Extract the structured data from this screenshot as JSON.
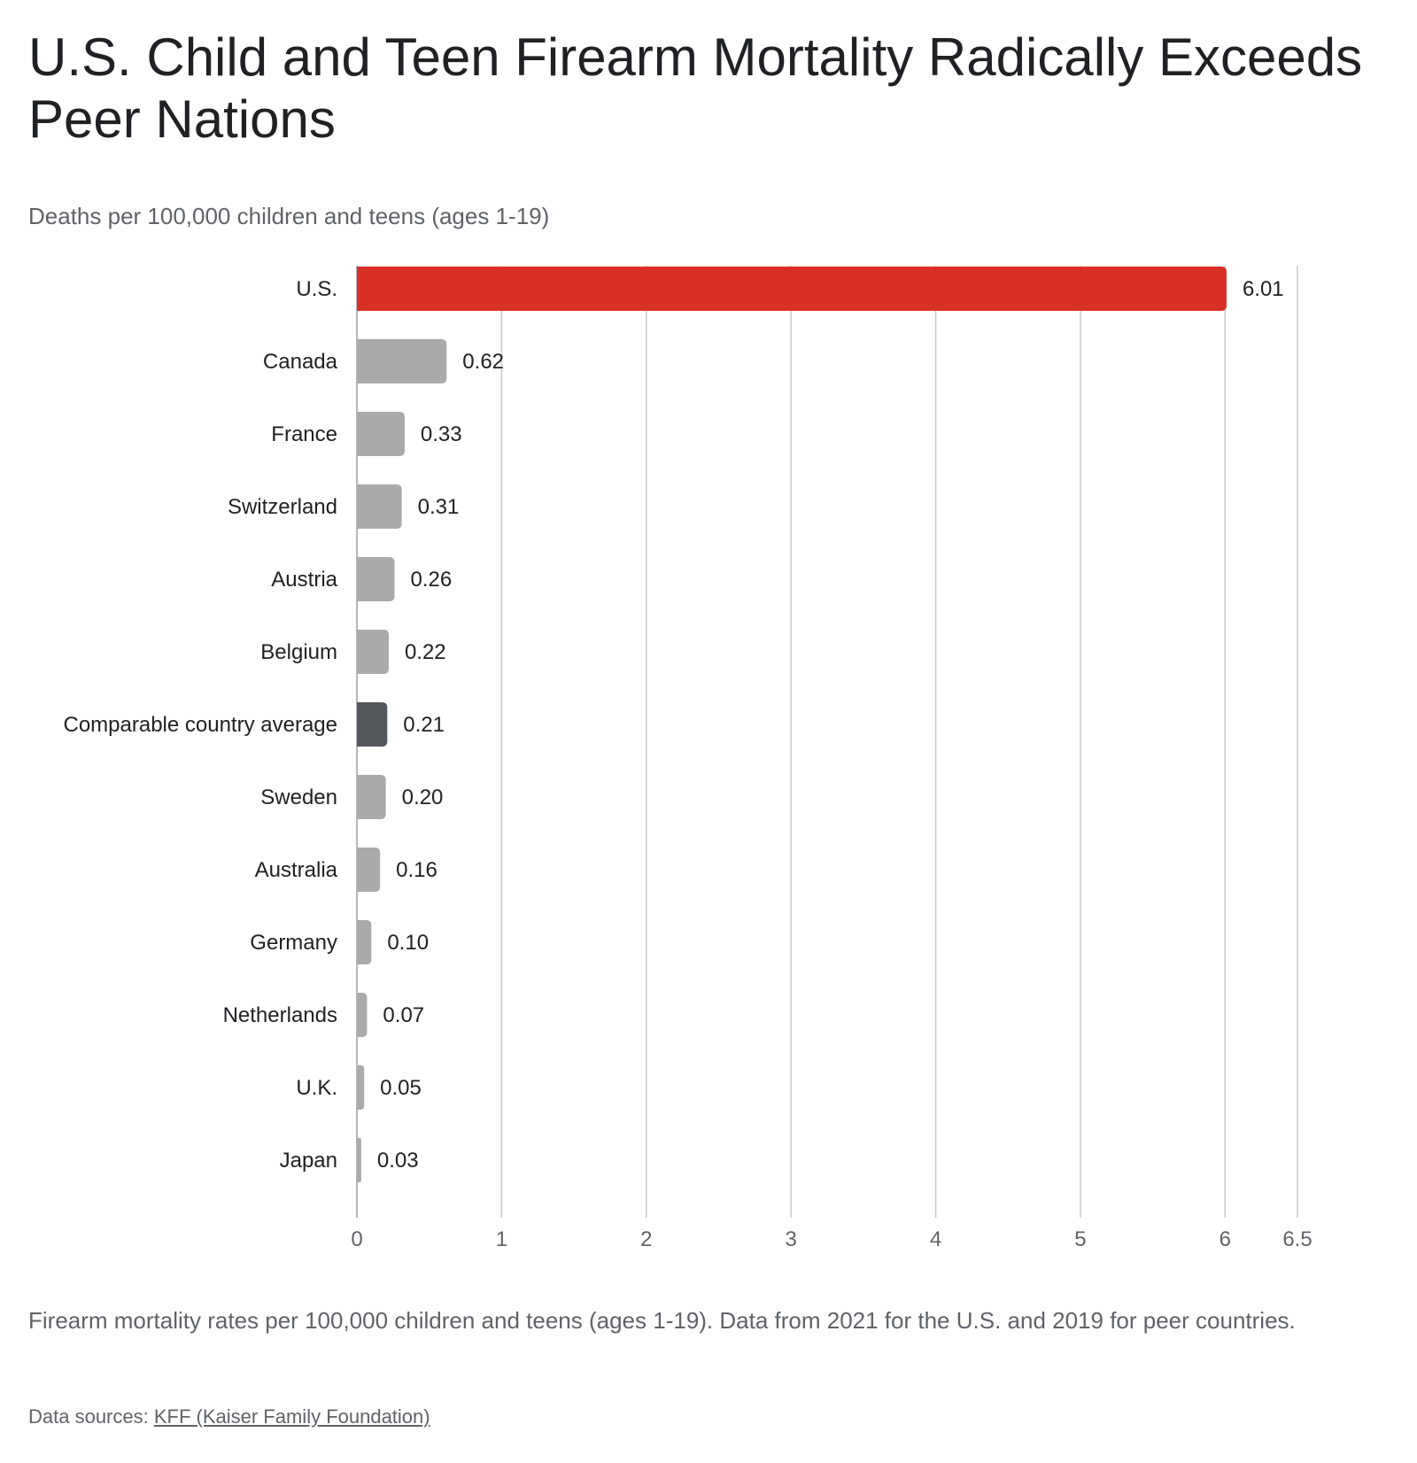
{
  "header": {
    "title": "U.S. Child and Teen Firearm Mortality Radically Exceeds Peer Nations",
    "subtitle": "Deaths per 100,000 children and teens (ages 1-19)"
  },
  "footer": {
    "note": "Firearm mortality rates per 100,000 children and teens (ages 1-19). Data from 2021 for the U.S. and 2019 for peer countries.",
    "sources_prefix": "Data sources: ",
    "sources_link": "KFF (Kaiser Family Foundation)"
  },
  "chart_data": {
    "type": "bar",
    "orientation": "horizontal",
    "title": "U.S. Child and Teen Firearm Mortality Radically Exceeds Peer Nations",
    "subtitle": "Deaths per 100,000 children and teens (ages 1-19)",
    "categories": [
      "U.S.",
      "Canada",
      "France",
      "Switzerland",
      "Austria",
      "Belgium",
      "Comparable country average",
      "Sweden",
      "Australia",
      "Germany",
      "Netherlands",
      "U.K.",
      "Japan"
    ],
    "values": [
      6.01,
      0.62,
      0.33,
      0.31,
      0.26,
      0.22,
      0.21,
      0.2,
      0.16,
      0.1,
      0.07,
      0.05,
      0.03
    ],
    "value_labels": [
      "6.01",
      "0.62",
      "0.33",
      "0.31",
      "0.26",
      "0.22",
      "0.21",
      "0.20",
      "0.16",
      "0.10",
      "0.07",
      "0.05",
      "0.03"
    ],
    "bar_colors": [
      "#d93025",
      "#aaaaaa",
      "#aaaaaa",
      "#aaaaaa",
      "#aaaaaa",
      "#aaaaaa",
      "#54575c",
      "#aaaaaa",
      "#aaaaaa",
      "#aaaaaa",
      "#aaaaaa",
      "#aaaaaa",
      "#aaaaaa"
    ],
    "xlim": [
      0,
      6.5
    ],
    "xticks": [
      0,
      1,
      2,
      3,
      4,
      5,
      6,
      6.5
    ],
    "xtick_labels": [
      "0",
      "1",
      "2",
      "3",
      "4",
      "5",
      "6",
      "6.5"
    ],
    "grid": true,
    "legend": "none"
  },
  "colors": {
    "highlight": "#d93025",
    "average": "#54575c",
    "default_bar": "#aaaaaa",
    "grid": "#c8c8c8"
  }
}
